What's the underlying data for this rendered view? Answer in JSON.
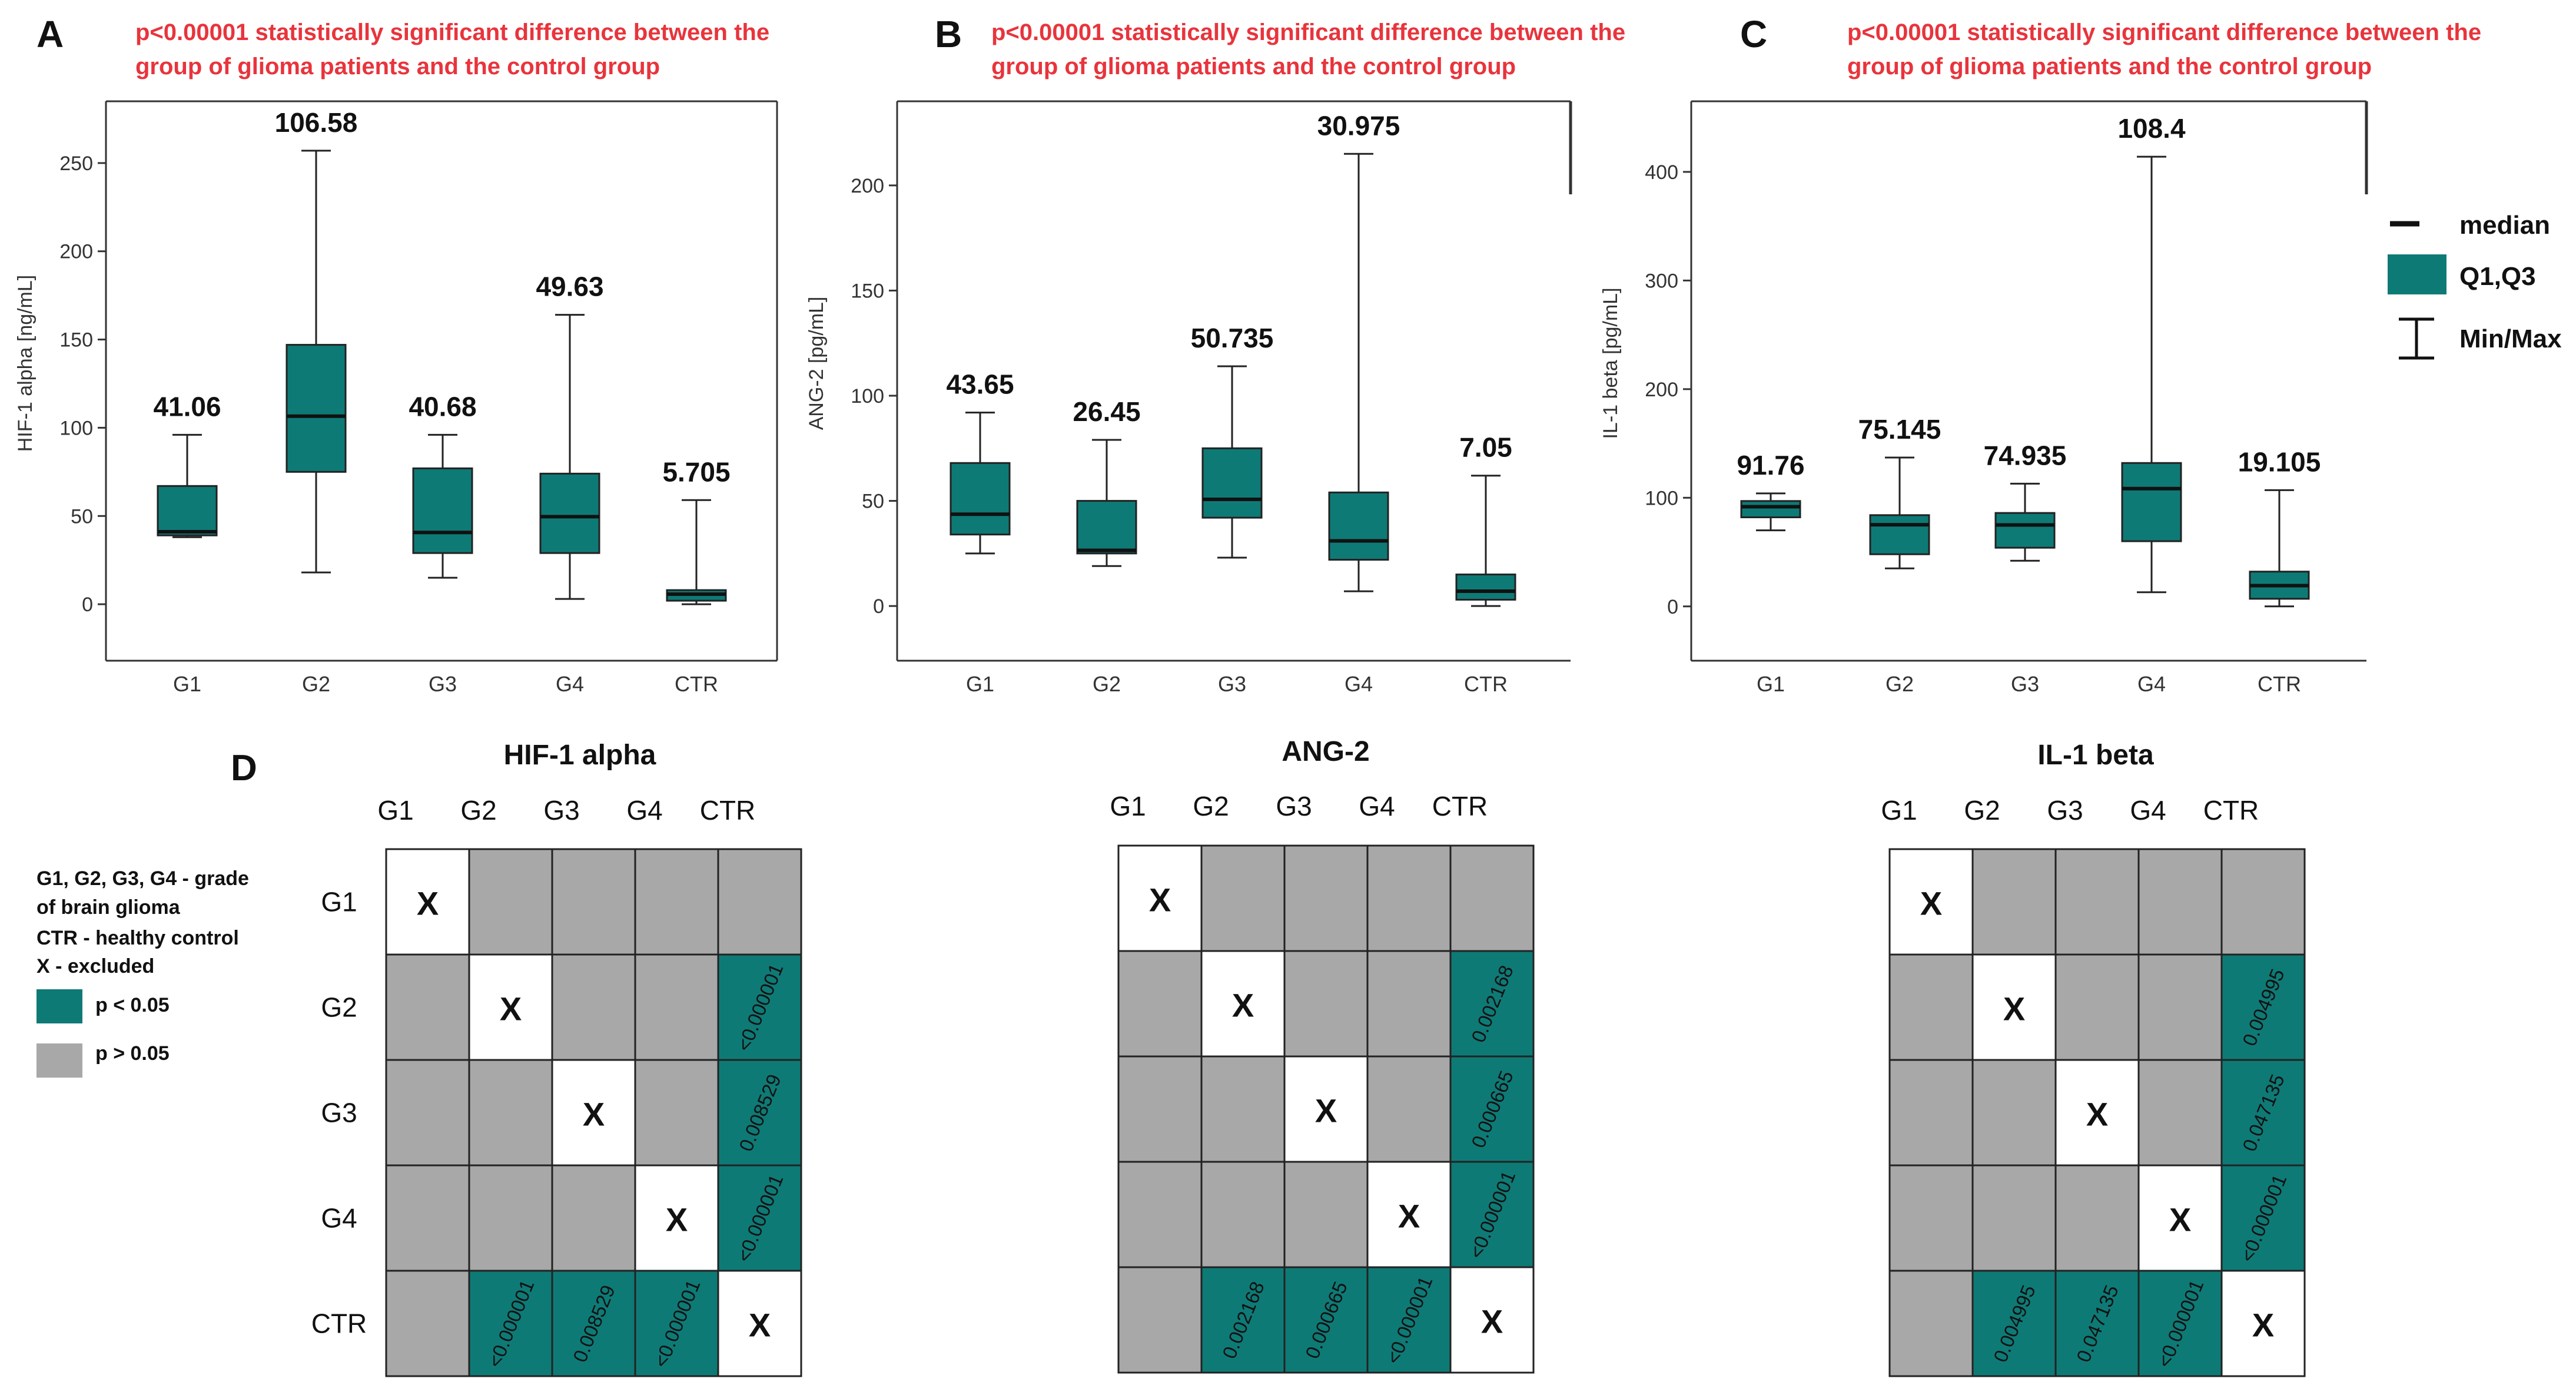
{
  "colors": {
    "box": "#0e7a76",
    "grey": "#a8a8a8",
    "excluded": "#ffffff",
    "title_red": "#e8343c",
    "axis": "#333333",
    "text": "#111111"
  },
  "legend": {
    "median": "median",
    "quartiles": "Q1,Q3",
    "minmax": "Min/Max"
  },
  "panel_d_legend": {
    "letter": "D",
    "lines": [
      "G1, G2, G3, G4 - grade",
      "of brain glioma",
      "CTR - healthy control",
      "X - excluded"
    ],
    "sig": "p < 0.05",
    "nonsig": "p > 0.05"
  },
  "chart_data": [
    {
      "type": "box",
      "letter": "A",
      "title": [
        "p<0.00001 statistically significant difference between the",
        "group of glioma patients and the control group"
      ],
      "ylabel": "HIF-1 alpha [ng/mL]",
      "ylim": [
        -32,
        285
      ],
      "yticks": [
        0,
        50,
        100,
        150,
        200,
        250
      ],
      "categories": [
        "G1",
        "G2",
        "G3",
        "G4",
        "CTR"
      ],
      "boxes": [
        {
          "min": 38,
          "q1": 39,
          "median": 41.06,
          "q3": 67,
          "max": 96,
          "label": "41.06"
        },
        {
          "min": 18,
          "q1": 75,
          "median": 106.58,
          "q3": 147,
          "max": 257,
          "label": "106.58"
        },
        {
          "min": 15,
          "q1": 29,
          "median": 40.68,
          "q3": 77,
          "max": 96,
          "label": "40.68"
        },
        {
          "min": 3,
          "q1": 29,
          "median": 49.63,
          "q3": 74,
          "max": 164,
          "label": "49.63"
        },
        {
          "min": 0,
          "q1": 2,
          "median": 5.705,
          "q3": 8,
          "max": 59,
          "label": "5.705"
        }
      ]
    },
    {
      "type": "box",
      "letter": "B",
      "title": [
        "p<0.00001 statistically significant difference between the",
        "group of glioma patients and the control group"
      ],
      "ylabel": "ANG-2 [pg/mL]",
      "ylim": [
        -26,
        240
      ],
      "yticks": [
        0,
        50,
        100,
        150,
        200
      ],
      "categories": [
        "G1",
        "G2",
        "G3",
        "G4",
        "CTR"
      ],
      "boxes": [
        {
          "min": 25,
          "q1": 34,
          "median": 43.65,
          "q3": 68,
          "max": 92,
          "label": "43.65"
        },
        {
          "min": 19,
          "q1": 25,
          "median": 26.45,
          "q3": 50,
          "max": 79,
          "label": "26.45"
        },
        {
          "min": 23,
          "q1": 42,
          "median": 50.735,
          "q3": 75,
          "max": 114,
          "label": "50.735"
        },
        {
          "min": 7,
          "q1": 22,
          "median": 30.975,
          "q3": 54,
          "max": 215,
          "label": "30.975"
        },
        {
          "min": 0,
          "q1": 3,
          "median": 7.05,
          "q3": 15,
          "max": 62,
          "label": "7.05"
        }
      ]
    },
    {
      "type": "box",
      "letter": "C",
      "title": [
        "p<0.00001 statistically significant difference between the",
        "group of glioma patients and the control group"
      ],
      "ylabel": "IL-1 beta [pg/mL]",
      "ylim": [
        -50,
        465
      ],
      "yticks": [
        0,
        100,
        200,
        300,
        400
      ],
      "categories": [
        "G1",
        "G2",
        "G3",
        "G4",
        "CTR"
      ],
      "boxes": [
        {
          "min": 70,
          "q1": 82,
          "median": 91.76,
          "q3": 97,
          "max": 104,
          "label": "91.76"
        },
        {
          "min": 35,
          "q1": 48,
          "median": 75.145,
          "q3": 84,
          "max": 137,
          "label": "75.145"
        },
        {
          "min": 42,
          "q1": 54,
          "median": 74.935,
          "q3": 86,
          "max": 113,
          "label": "74.935"
        },
        {
          "min": 13,
          "q1": 60,
          "median": 108.4,
          "q3": 132,
          "max": 414,
          "label": "108.4"
        },
        {
          "min": 0,
          "q1": 7,
          "median": 19.105,
          "q3": 32,
          "max": 107,
          "label": "19.105"
        }
      ]
    },
    {
      "type": "table",
      "title": "HIF-1 alpha",
      "groups": [
        "G1",
        "G2",
        "G3",
        "G4",
        "CTR"
      ],
      "matrix": [
        [
          "X",
          "",
          "",
          "",
          ""
        ],
        [
          "",
          "X",
          "",
          "",
          "<0.000001"
        ],
        [
          "",
          "",
          "X",
          "",
          "0.008529"
        ],
        [
          "",
          "",
          "",
          "X",
          "<0.000001"
        ],
        [
          "",
          "<0.000001",
          "0.008529",
          "<0.000001",
          "X"
        ]
      ]
    },
    {
      "type": "table",
      "title": "ANG-2",
      "groups": [
        "G1",
        "G2",
        "G3",
        "G4",
        "CTR"
      ],
      "matrix": [
        [
          "X",
          "",
          "",
          "",
          ""
        ],
        [
          "",
          "X",
          "",
          "",
          "0.002168"
        ],
        [
          "",
          "",
          "X",
          "",
          "0.000665"
        ],
        [
          "",
          "",
          "",
          "X",
          "<0.000001"
        ],
        [
          "",
          "0.002168",
          "0.000665",
          "<0.000001",
          "X"
        ]
      ]
    },
    {
      "type": "table",
      "title": "IL-1 beta",
      "groups": [
        "G1",
        "G2",
        "G3",
        "G4",
        "CTR"
      ],
      "matrix": [
        [
          "X",
          "",
          "",
          "",
          ""
        ],
        [
          "",
          "X",
          "",
          "",
          "0.004995"
        ],
        [
          "",
          "",
          "X",
          "",
          "0.047135"
        ],
        [
          "",
          "",
          "",
          "X",
          "<0.000001"
        ],
        [
          "",
          "0.004995",
          "0.047135",
          "<0.000001",
          "X"
        ]
      ]
    }
  ]
}
